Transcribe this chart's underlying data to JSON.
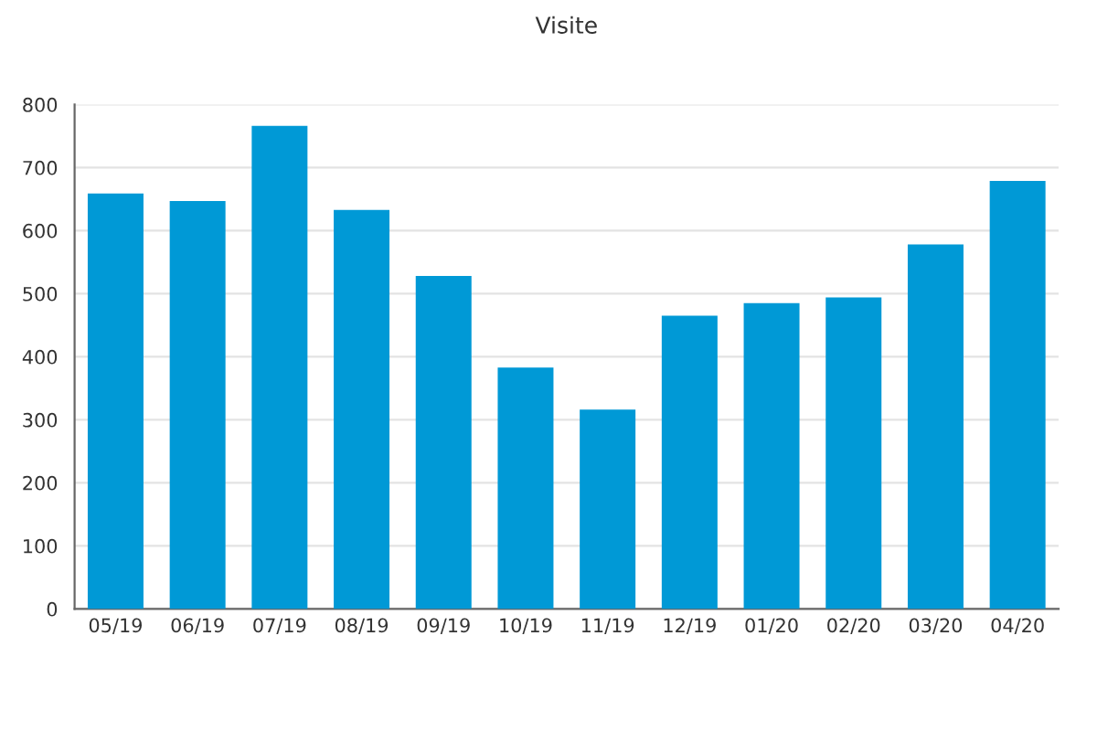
{
  "chart_data": {
    "type": "bar",
    "title": "Visite",
    "categories": [
      "05/19",
      "06/19",
      "07/19",
      "08/19",
      "09/19",
      "10/19",
      "11/19",
      "12/19",
      "01/20",
      "02/20",
      "03/20",
      "04/20"
    ],
    "values": [
      659,
      647,
      766,
      633,
      528,
      383,
      316,
      465,
      485,
      494,
      578,
      679
    ],
    "color": "#0099d6",
    "ylim": [
      0,
      800
    ],
    "yticks": [
      0,
      100,
      200,
      300,
      400,
      500,
      600,
      700,
      800
    ],
    "grid": "y"
  }
}
